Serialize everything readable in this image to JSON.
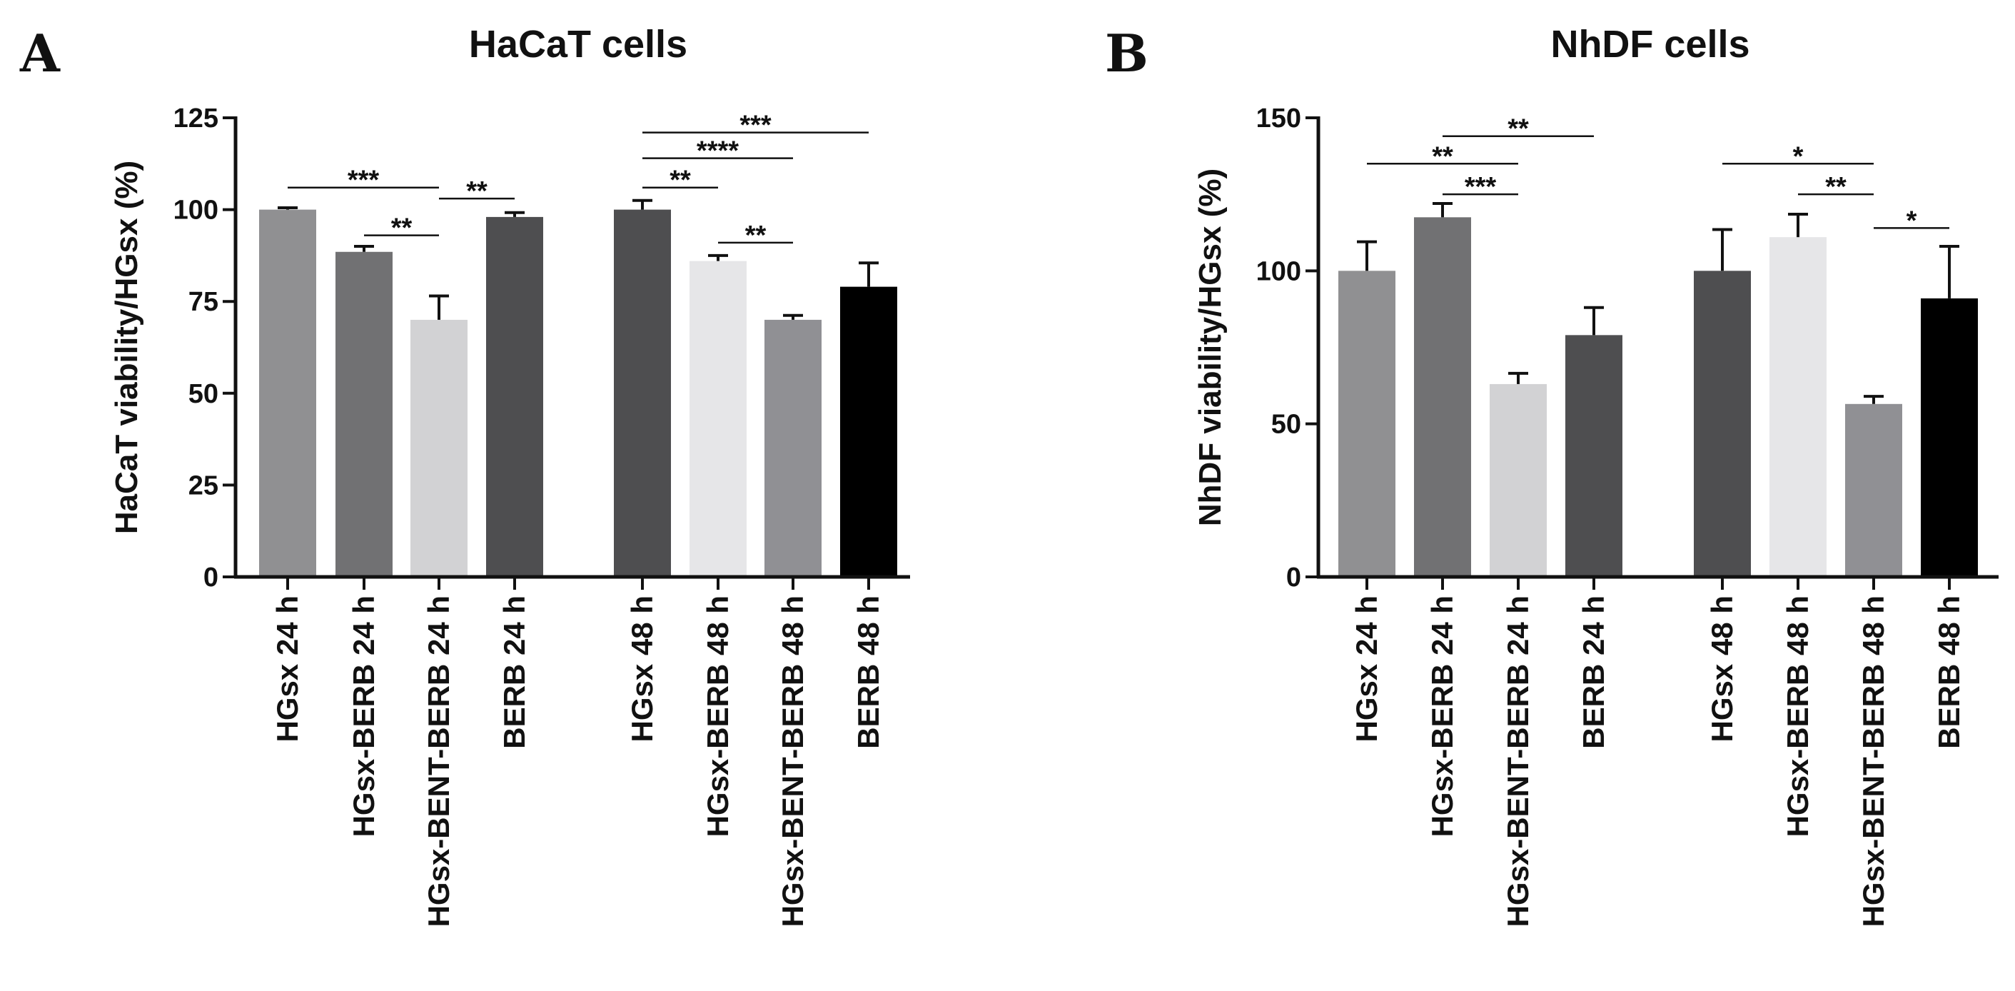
{
  "chart_data": [
    {
      "panel": "A",
      "type": "bar",
      "title": "HaCaT cells",
      "ylabel": "HaCaT viability/HGsx (%)",
      "xlabel": "",
      "ylim": [
        0,
        125
      ],
      "yticks": [
        "0",
        "25",
        "50",
        "75",
        "100",
        "125"
      ],
      "grid": false,
      "categories": [
        "HGsx 24 h",
        "HGsx-BERB 24 h",
        "HGsx-BENT-BERB 24 h",
        "BERB 24 h",
        "HGsx 48 h",
        "HGsx-BERB 48 h",
        "HGsx-BENT-BERB 48 h",
        "BERB 48 h"
      ],
      "values": [
        100,
        88.5,
        70,
        98,
        100,
        86,
        70,
        79
      ],
      "errors": [
        0.5,
        1.5,
        6.5,
        1.2,
        2.5,
        1.5,
        1.2,
        6.5
      ],
      "colors": [
        "#909092",
        "#717173",
        "#d2d2d4",
        "#4e4e50",
        "#4e4e50",
        "#e6e6e8",
        "#909094",
        "#000000"
      ],
      "significance": [
        {
          "from": 0,
          "to": 2,
          "label": "***",
          "y": 106
        },
        {
          "from": 1,
          "to": 2,
          "label": "**",
          "y": 93
        },
        {
          "from": 2,
          "to": 3,
          "label": "**",
          "y": 103
        },
        {
          "from": 4,
          "to": 7,
          "label": "***",
          "y": 121
        },
        {
          "from": 4,
          "to": 6,
          "label": "****",
          "y": 114
        },
        {
          "from": 4,
          "to": 5,
          "label": "**",
          "y": 106
        },
        {
          "from": 5,
          "to": 6,
          "label": "**",
          "y": 91
        }
      ]
    },
    {
      "panel": "B",
      "type": "bar",
      "title": "NhDF cells",
      "ylabel": "NhDF viability/HGsx (%)",
      "xlabel": "",
      "ylim": [
        0,
        150
      ],
      "yticks": [
        "0",
        "50",
        "100",
        "150"
      ],
      "grid": false,
      "categories": [
        "HGsx 24 h",
        "HGsx-BERB 24 h",
        "HGsx-BENT-BERB 24 h",
        "BERB 24 h",
        "HGsx 48 h",
        "HGsx-BERB 48 h",
        "HGsx-BENT-BERB 48 h",
        "BERB 48 h"
      ],
      "values": [
        100,
        117.5,
        63,
        79,
        100,
        111,
        56.5,
        91
      ],
      "errors": [
        9.5,
        4.5,
        3.5,
        9,
        13.5,
        7.5,
        2.5,
        17
      ],
      "colors": [
        "#909092",
        "#717173",
        "#d2d2d4",
        "#4e4e50",
        "#4e4e50",
        "#e6e6e8",
        "#909094",
        "#000000"
      ],
      "significance": [
        {
          "from": 1,
          "to": 3,
          "label": "**",
          "y": 144
        },
        {
          "from": 0,
          "to": 2,
          "label": "**",
          "y": 135
        },
        {
          "from": 1,
          "to": 2,
          "label": "***",
          "y": 125
        },
        {
          "from": 4,
          "to": 6,
          "label": "*",
          "y": 135
        },
        {
          "from": 5,
          "to": 6,
          "label": "**",
          "y": 125
        },
        {
          "from": 6,
          "to": 7,
          "label": "*",
          "y": 114
        }
      ]
    }
  ]
}
